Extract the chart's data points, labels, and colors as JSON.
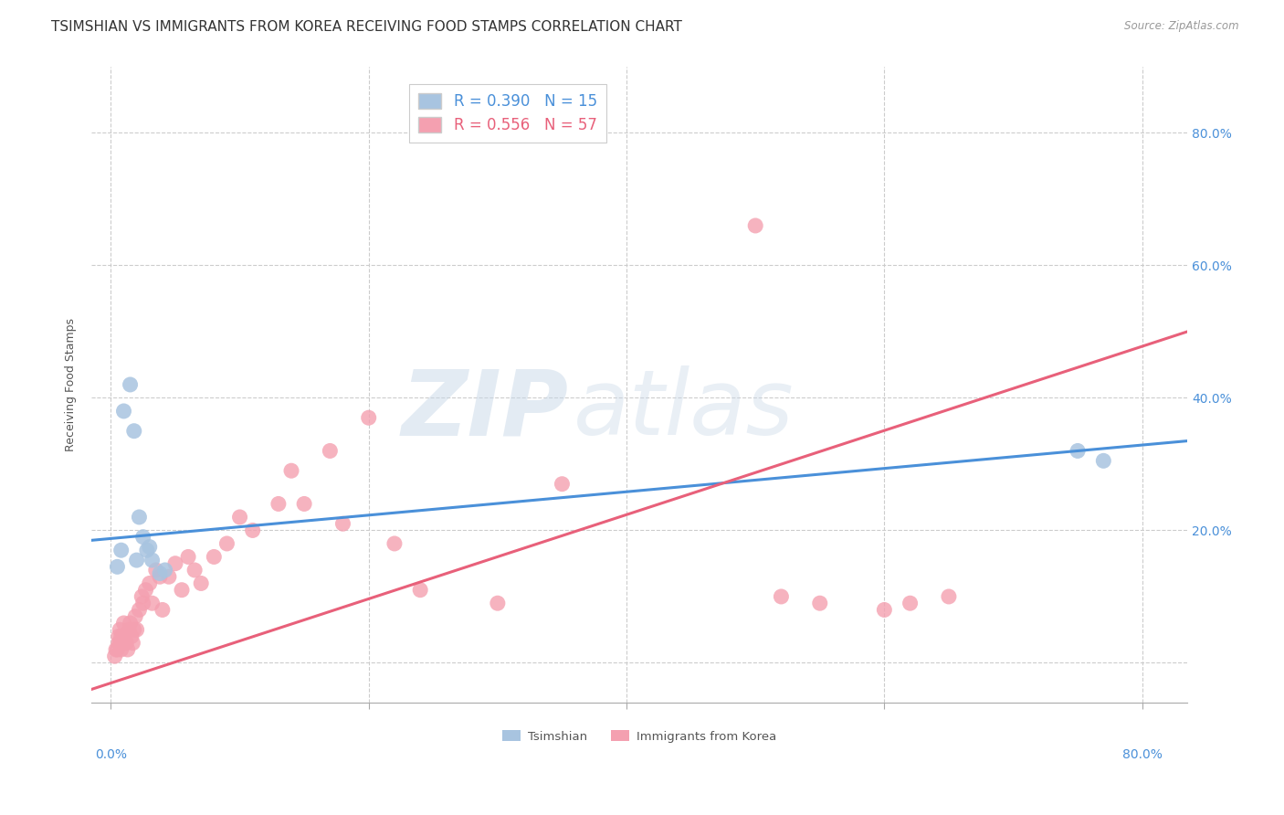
{
  "title": "TSIMSHIAN VS IMMIGRANTS FROM KOREA RECEIVING FOOD STAMPS CORRELATION CHART",
  "source": "Source: ZipAtlas.com",
  "ylabel": "Receiving Food Stamps",
  "y_ticks": [
    0.0,
    0.2,
    0.4,
    0.6,
    0.8
  ],
  "y_tick_labels": [
    "",
    "20.0%",
    "40.0%",
    "60.0%",
    "80.0%"
  ],
  "x_ticks": [
    0.0,
    0.2,
    0.4,
    0.6,
    0.8
  ],
  "xlim": [
    -0.015,
    0.835
  ],
  "ylim": [
    -0.06,
    0.9
  ],
  "watermark_zip": "ZIP",
  "watermark_atlas": "atlas",
  "tsimshian_color": "#a8c4e0",
  "korea_color": "#f4a0b0",
  "tsimshian_line_color": "#4a90d9",
  "korea_line_color": "#e8607a",
  "tsimshian_R": 0.39,
  "tsimshian_N": 15,
  "korea_R": 0.556,
  "korea_N": 57,
  "tsimshian_line_x0": -0.015,
  "tsimshian_line_y0": 0.185,
  "tsimshian_line_x1": 0.835,
  "tsimshian_line_y1": 0.335,
  "korea_line_x0": -0.015,
  "korea_line_y0": -0.04,
  "korea_line_x1": 0.835,
  "korea_line_y1": 0.5,
  "tsimshian_x": [
    0.005,
    0.01,
    0.015,
    0.018,
    0.022,
    0.025,
    0.028,
    0.032,
    0.038,
    0.042,
    0.008,
    0.02,
    0.03,
    0.75,
    0.77
  ],
  "tsimshian_y": [
    0.145,
    0.38,
    0.42,
    0.35,
    0.22,
    0.19,
    0.17,
    0.155,
    0.135,
    0.14,
    0.17,
    0.155,
    0.175,
    0.32,
    0.305
  ],
  "korea_x": [
    0.003,
    0.004,
    0.005,
    0.006,
    0.006,
    0.007,
    0.007,
    0.008,
    0.008,
    0.009,
    0.01,
    0.01,
    0.011,
    0.012,
    0.013,
    0.014,
    0.015,
    0.016,
    0.017,
    0.018,
    0.019,
    0.02,
    0.022,
    0.024,
    0.025,
    0.027,
    0.03,
    0.032,
    0.035,
    0.038,
    0.04,
    0.045,
    0.05,
    0.055,
    0.06,
    0.065,
    0.07,
    0.08,
    0.09,
    0.1,
    0.11,
    0.13,
    0.14,
    0.15,
    0.17,
    0.18,
    0.2,
    0.22,
    0.24,
    0.3,
    0.35,
    0.5,
    0.52,
    0.55,
    0.6,
    0.62,
    0.65
  ],
  "korea_y": [
    0.01,
    0.02,
    0.02,
    0.03,
    0.04,
    0.03,
    0.05,
    0.02,
    0.04,
    0.03,
    0.04,
    0.06,
    0.04,
    0.03,
    0.02,
    0.05,
    0.06,
    0.04,
    0.03,
    0.05,
    0.07,
    0.05,
    0.08,
    0.1,
    0.09,
    0.11,
    0.12,
    0.09,
    0.14,
    0.13,
    0.08,
    0.13,
    0.15,
    0.11,
    0.16,
    0.14,
    0.12,
    0.16,
    0.18,
    0.22,
    0.2,
    0.24,
    0.29,
    0.24,
    0.32,
    0.21,
    0.37,
    0.18,
    0.11,
    0.09,
    0.27,
    0.66,
    0.1,
    0.09,
    0.08,
    0.09,
    0.1
  ],
  "background_color": "#ffffff",
  "grid_color": "#cccccc",
  "title_fontsize": 11,
  "axis_label_fontsize": 9,
  "tick_fontsize": 10,
  "legend_fontsize": 12
}
